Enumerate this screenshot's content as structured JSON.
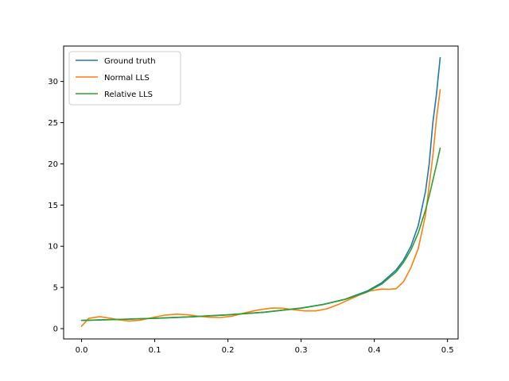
{
  "chart_data": {
    "type": "line",
    "title": "",
    "xlabel": "",
    "ylabel": "",
    "xlim": [
      -0.0245,
      0.5145
    ],
    "ylim": [
      -1.25,
      34.3
    ],
    "xticks": [
      0.0,
      0.1,
      0.2,
      0.3,
      0.4,
      0.5
    ],
    "xtick_labels": [
      "0.0",
      "0.1",
      "0.2",
      "0.3",
      "0.4",
      "0.5"
    ],
    "yticks": [
      0,
      5,
      10,
      15,
      20,
      25,
      30
    ],
    "ytick_labels": [
      "0",
      "5",
      "10",
      "15",
      "20",
      "25",
      "30"
    ],
    "grid": false,
    "legend_position": "top-left",
    "series": [
      {
        "name": "Ground truth",
        "color": "#1f77b4",
        "x": [
          0.0,
          0.05,
          0.1,
          0.15,
          0.2,
          0.25,
          0.3,
          0.33,
          0.36,
          0.39,
          0.41,
          0.43,
          0.44,
          0.45,
          0.46,
          0.47,
          0.475,
          0.48,
          0.485,
          0.49
        ],
        "y": [
          1.0,
          1.11,
          1.25,
          1.43,
          1.67,
          2.0,
          2.5,
          2.94,
          3.57,
          4.55,
          5.56,
          7.14,
          8.33,
          10.0,
          12.5,
          16.67,
          20.0,
          25.0,
          28.5,
          32.9
        ]
      },
      {
        "name": "Normal LLS",
        "color": "#ff7f0e",
        "x": [
          0.0,
          0.01,
          0.025,
          0.04,
          0.05,
          0.065,
          0.08,
          0.1,
          0.115,
          0.13,
          0.145,
          0.16,
          0.175,
          0.19,
          0.205,
          0.22,
          0.24,
          0.26,
          0.275,
          0.29,
          0.305,
          0.32,
          0.335,
          0.35,
          0.365,
          0.38,
          0.395,
          0.41,
          0.42,
          0.43,
          0.44,
          0.45,
          0.46,
          0.47,
          0.48,
          0.485,
          0.49
        ],
        "y": [
          0.3,
          1.25,
          1.45,
          1.25,
          1.08,
          0.92,
          1.02,
          1.4,
          1.65,
          1.75,
          1.68,
          1.5,
          1.38,
          1.35,
          1.5,
          1.85,
          2.25,
          2.5,
          2.48,
          2.3,
          2.15,
          2.15,
          2.4,
          2.9,
          3.5,
          4.1,
          4.6,
          4.8,
          4.78,
          4.85,
          5.7,
          7.4,
          9.7,
          13.8,
          21.0,
          25.5,
          29.0
        ]
      },
      {
        "name": "Relative LLS",
        "color": "#2ca02c",
        "x": [
          0.0,
          0.05,
          0.1,
          0.15,
          0.2,
          0.25,
          0.3,
          0.33,
          0.36,
          0.39,
          0.41,
          0.43,
          0.44,
          0.45,
          0.46,
          0.47,
          0.475,
          0.48,
          0.485,
          0.49
        ],
        "y": [
          1.0,
          1.12,
          1.26,
          1.44,
          1.68,
          2.0,
          2.48,
          2.92,
          3.55,
          4.45,
          5.4,
          6.9,
          8.05,
          9.55,
          11.6,
          14.4,
          16.1,
          18.0,
          19.9,
          21.9
        ]
      }
    ]
  }
}
